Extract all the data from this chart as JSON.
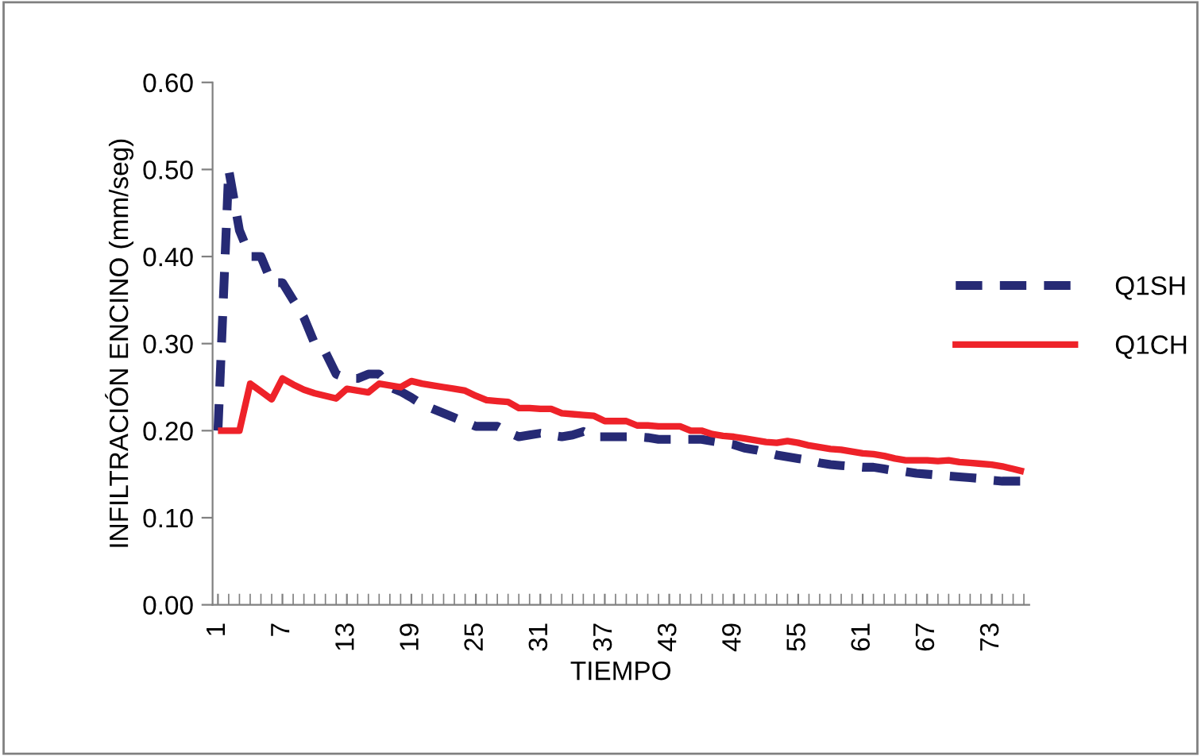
{
  "chart_data": {
    "type": "line",
    "xlabel": "TIEMPO",
    "ylabel": "INFILTRACIÓN ENCINO (mm/seg)",
    "categories": [
      "1",
      null,
      null,
      null,
      null,
      null,
      "7",
      null,
      null,
      null,
      null,
      null,
      "13",
      null,
      null,
      null,
      null,
      null,
      "19",
      null,
      null,
      null,
      null,
      null,
      "25",
      null,
      null,
      null,
      null,
      null,
      "31",
      null,
      null,
      null,
      null,
      null,
      "37",
      null,
      null,
      null,
      null,
      null,
      "43",
      null,
      null,
      null,
      null,
      null,
      "49",
      null,
      null,
      null,
      null,
      null,
      "55",
      null,
      null,
      null,
      null,
      null,
      "61",
      null,
      null,
      null,
      null,
      null,
      "67",
      null,
      null,
      null,
      null,
      null,
      "73",
      null,
      null,
      null
    ],
    "series": [
      {
        "name": "Q1SH",
        "color": "#262a75",
        "line_style": "dashed",
        "values": [
          0.2,
          0.5,
          0.43,
          0.4,
          0.4,
          0.37,
          0.37,
          0.35,
          0.33,
          0.3,
          0.29,
          0.265,
          0.26,
          0.26,
          0.265,
          0.265,
          0.25,
          0.245,
          0.238,
          0.23,
          0.225,
          0.22,
          0.215,
          0.21,
          0.205,
          0.205,
          0.205,
          0.198,
          0.193,
          0.195,
          0.197,
          0.195,
          0.193,
          0.195,
          0.199,
          0.193,
          0.193,
          0.193,
          0.193,
          0.193,
          0.192,
          0.19,
          0.19,
          0.19,
          0.19,
          0.19,
          0.188,
          0.186,
          0.184,
          0.18,
          0.178,
          0.175,
          0.172,
          0.17,
          0.168,
          0.166,
          0.163,
          0.161,
          0.16,
          0.159,
          0.158,
          0.158,
          0.156,
          0.154,
          0.153,
          0.151,
          0.15,
          0.149,
          0.148,
          0.147,
          0.146,
          0.145,
          0.143,
          0.142,
          0.142,
          0.142
        ]
      },
      {
        "name": "Q1CH",
        "color": "#ee2229",
        "line_style": "solid",
        "values": [
          0.2,
          0.2,
          0.2,
          0.254,
          0.245,
          0.236,
          0.26,
          0.253,
          0.247,
          0.243,
          0.24,
          0.237,
          0.248,
          0.246,
          0.244,
          0.254,
          0.252,
          0.25,
          0.257,
          0.254,
          0.252,
          0.25,
          0.248,
          0.246,
          0.24,
          0.235,
          0.234,
          0.233,
          0.226,
          0.226,
          0.225,
          0.225,
          0.22,
          0.219,
          0.218,
          0.217,
          0.211,
          0.211,
          0.211,
          0.206,
          0.206,
          0.205,
          0.205,
          0.205,
          0.2,
          0.2,
          0.196,
          0.194,
          0.193,
          0.191,
          0.189,
          0.187,
          0.186,
          0.188,
          0.186,
          0.183,
          0.181,
          0.179,
          0.178,
          0.176,
          0.174,
          0.173,
          0.171,
          0.168,
          0.166,
          0.166,
          0.166,
          0.165,
          0.166,
          0.164,
          0.163,
          0.162,
          0.161,
          0.159,
          0.156,
          0.153
        ]
      }
    ],
    "ylim": [
      0,
      0.6
    ],
    "yticks": [
      {
        "value": 0,
        "label": "0.00"
      },
      {
        "value": 0.1,
        "label": "0.10"
      },
      {
        "value": 0.2,
        "label": "0.20"
      },
      {
        "value": 0.3,
        "label": "0.30"
      },
      {
        "value": 0.4,
        "label": "0.40"
      },
      {
        "value": 0.5,
        "label": "0.50"
      },
      {
        "value": 0.6,
        "label": "0.60"
      }
    ],
    "grid": false,
    "legend": "right",
    "marker": "none"
  }
}
